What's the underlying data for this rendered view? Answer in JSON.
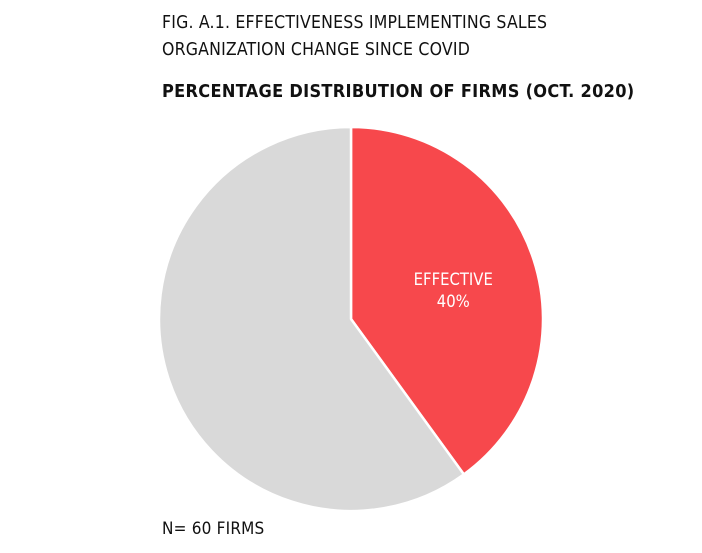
{
  "figure": {
    "title_lines": [
      "FIG. A.1. EFFECTIVENESS IMPLEMENTING SALES",
      "ORGANIZATION CHANGE SINCE COVID"
    ],
    "subtitle": "PERCENTAGE DISTRIBUTION OF FIRMS (OCT. 2020)",
    "note": "N= 60 FIRMS"
  },
  "chart_data": {
    "type": "pie",
    "title": "PERCENTAGE DISTRIBUTION OF FIRMS (OCT. 2020)",
    "start": "12 o'clock, clockwise",
    "slices": [
      {
        "label": "EFFECTIVE",
        "value": 40,
        "value_label": "40%",
        "color": "#f7484c",
        "labeled": true
      },
      {
        "label": "",
        "value": 60,
        "value_label": "",
        "color": "#d9d9d9",
        "labeled": false
      }
    ]
  }
}
